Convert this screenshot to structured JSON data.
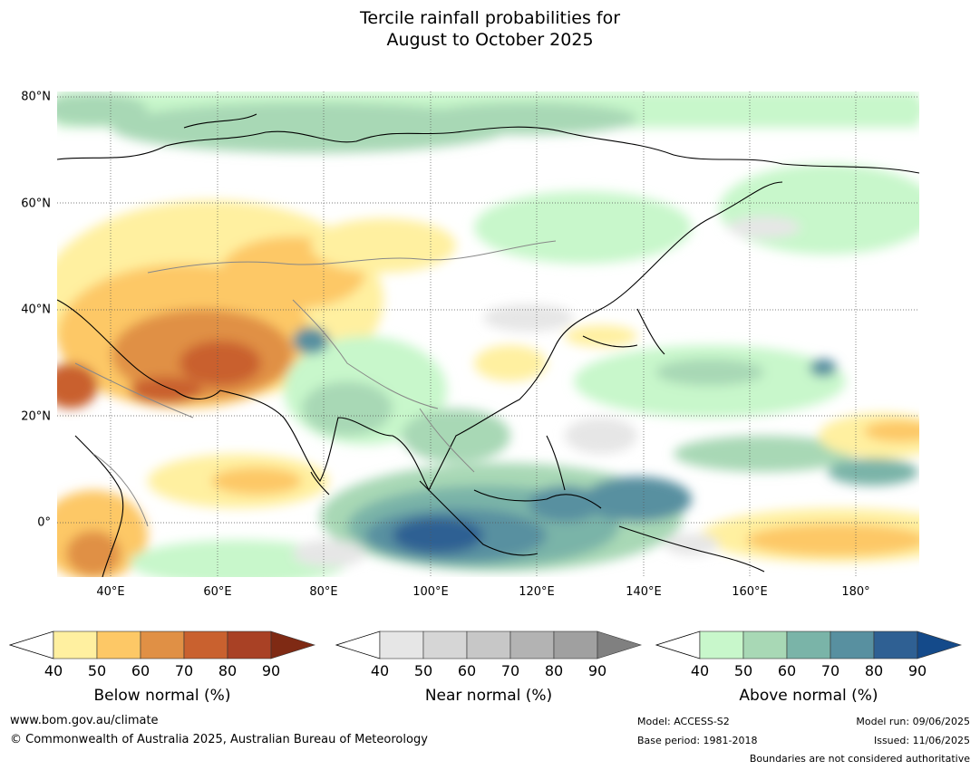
{
  "title_line1": "Tercile rainfall probabilities for",
  "title_line2": "August to October 2025",
  "lat_labels": [
    "80°N",
    "60°N",
    "40°N",
    "20°N",
    "0°"
  ],
  "lon_labels": [
    "40°E",
    "60°E",
    "80°E",
    "100°E",
    "120°E",
    "140°E",
    "160°E",
    "180°"
  ],
  "colorbars": {
    "below": {
      "title": "Below normal (%)",
      "ticks": [
        "40",
        "50",
        "60",
        "70",
        "80",
        "90"
      ],
      "colors": [
        "#fff0a0",
        "#fdc866",
        "#e09045",
        "#c9612f",
        "#a94125",
        "#7f2a14"
      ]
    },
    "near": {
      "title": "Near normal (%)",
      "ticks": [
        "40",
        "50",
        "60",
        "70",
        "80",
        "90"
      ],
      "colors": [
        "#e6e6e6",
        "#d6d6d6",
        "#c7c7c7",
        "#b3b3b3",
        "#a0a0a0",
        "#808080"
      ]
    },
    "above": {
      "title": "Above normal (%)",
      "ticks": [
        "40",
        "50",
        "60",
        "70",
        "80",
        "90"
      ],
      "colors": [
        "#c8f7cb",
        "#a8d8b5",
        "#7ab4a8",
        "#5890a0",
        "#2f6093",
        "#144a8a"
      ]
    }
  },
  "footer": {
    "website": "www.bom.gov.au/climate",
    "copyright": "© Commonwealth of Australia 2025, Australian Bureau of Meteorology",
    "model": "Model: ACCESS-S2",
    "base_period": "Base period: 1981-2018",
    "model_run": "Model run: 09/06/2025",
    "issued": "Issued: 11/06/2025",
    "disclaimer": "Boundaries are not considered authoritative"
  }
}
